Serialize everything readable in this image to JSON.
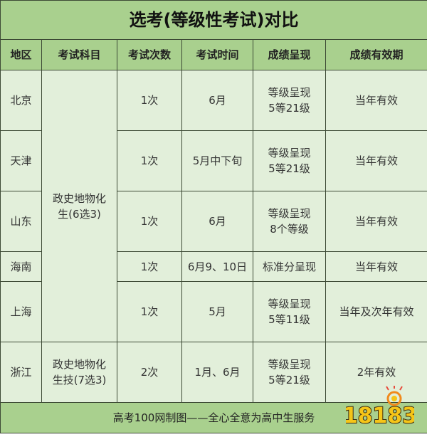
{
  "title": "选考(等级性考试)对比",
  "headers": [
    "地区",
    "考试科目",
    "考试次数",
    "考试时间",
    "成绩呈现",
    "成绩有效期"
  ],
  "rows": [
    {
      "region": "北京",
      "times": "1次",
      "date": "6月",
      "score_line1": "等级呈现",
      "score_line2": "5等21级",
      "validity": "当年有效"
    },
    {
      "region": "天津",
      "times": "1次",
      "date": "5月中下旬",
      "score_line1": "等级呈现",
      "score_line2": "5等21级",
      "validity": "当年有效"
    },
    {
      "region": "山东",
      "times": "1次",
      "date": "6月",
      "score_line1": "等级呈现",
      "score_line2": "8个等级",
      "validity": "当年有效"
    },
    {
      "region": "海南",
      "times": "1次",
      "date": "6月9、10日",
      "score_line1": "标准分呈现",
      "score_line2": "",
      "validity": "当年有效"
    },
    {
      "region": "上海",
      "times": "1次",
      "date": "5月",
      "score_line1": "等级呈现",
      "score_line2": "5等11级",
      "validity": "当年及次年有效"
    },
    {
      "region": "浙江",
      "times": "2次",
      "date": "1月、6月",
      "score_line1": "等级呈现",
      "score_line2": "5等21级",
      "validity": "2年有效"
    }
  ],
  "subjects_merged": {
    "line1": "政史地物化",
    "line2": "生(6选3)"
  },
  "subjects_zhejiang": {
    "line1": "政史地物化",
    "line2": "生技(7选3)"
  },
  "footer": "高考100网制图——全心全意为高中生服务",
  "watermark": "18183",
  "colors": {
    "header_bg": "#a9d08e",
    "cell_bg": "#e2efda",
    "border": "#3d4a35",
    "logo": "#f5c518"
  }
}
